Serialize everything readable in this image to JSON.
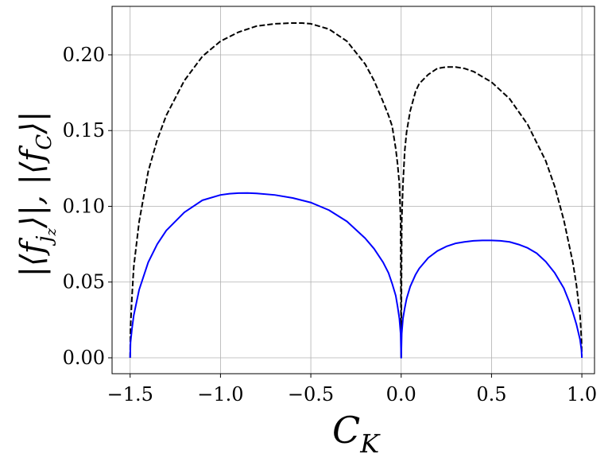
{
  "chart_data": {
    "type": "line",
    "xlabel": "C_K",
    "ylabel": "|⟨f_jz⟩|, |⟨f_C⟩|",
    "xlim": [
      -1.6,
      1.07
    ],
    "ylim": [
      -0.0105,
      0.232
    ],
    "grid": true,
    "x_ticks": [
      -1.5,
      -1.0,
      -0.5,
      0.0,
      0.5,
      1.0
    ],
    "x_tick_labels": [
      "−1.5",
      "−1.0",
      "−0.5",
      "0.0",
      "0.5",
      "1.0"
    ],
    "y_ticks": [
      0.0,
      0.05,
      0.1,
      0.15,
      0.2
    ],
    "y_tick_labels": [
      "0.00",
      "0.05",
      "0.10",
      "0.15",
      "0.20"
    ],
    "series": [
      {
        "style": "dashed",
        "color": "#000000",
        "x": [
          -1.5,
          -1.498,
          -1.49,
          -1.48,
          -1.45,
          -1.4,
          -1.35,
          -1.3,
          -1.2,
          -1.1,
          -1.0,
          -0.9,
          -0.8,
          -0.7,
          -0.6,
          -0.55,
          -0.5,
          -0.4,
          -0.3,
          -0.2,
          -0.15,
          -0.1,
          -0.07,
          -0.05,
          -0.03,
          -0.02,
          -0.01,
          -0.003,
          0.0,
          0.003,
          0.01,
          0.02,
          0.03,
          0.05,
          0.08,
          0.1,
          0.15,
          0.2,
          0.25,
          0.3,
          0.35,
          0.4,
          0.5,
          0.6,
          0.7,
          0.8,
          0.85,
          0.9,
          0.95,
          0.97,
          0.99,
          0.998,
          1.0
        ],
        "y": [
          0.0,
          0.02,
          0.04,
          0.06,
          0.09,
          0.123,
          0.144,
          0.16,
          0.183,
          0.199,
          0.209,
          0.215,
          0.219,
          0.2205,
          0.221,
          0.221,
          0.2205,
          0.217,
          0.209,
          0.194,
          0.183,
          0.169,
          0.16,
          0.153,
          0.138,
          0.128,
          0.115,
          0.09,
          0.0,
          0.09,
          0.115,
          0.137,
          0.149,
          0.163,
          0.176,
          0.181,
          0.187,
          0.191,
          0.192,
          0.192,
          0.191,
          0.189,
          0.182,
          0.171,
          0.154,
          0.13,
          0.113,
          0.091,
          0.063,
          0.048,
          0.028,
          0.012,
          0.0
        ]
      },
      {
        "style": "solid",
        "color": "#0000ff",
        "x": [
          -1.5,
          -1.498,
          -1.49,
          -1.48,
          -1.45,
          -1.4,
          -1.35,
          -1.3,
          -1.2,
          -1.1,
          -1.0,
          -0.95,
          -0.9,
          -0.85,
          -0.8,
          -0.7,
          -0.6,
          -0.5,
          -0.4,
          -0.3,
          -0.2,
          -0.15,
          -0.1,
          -0.07,
          -0.05,
          -0.03,
          -0.02,
          -0.01,
          -0.003,
          0.0,
          0.003,
          0.01,
          0.02,
          0.03,
          0.05,
          0.08,
          0.1,
          0.15,
          0.2,
          0.25,
          0.3,
          0.35,
          0.4,
          0.45,
          0.5,
          0.55,
          0.6,
          0.65,
          0.7,
          0.75,
          0.8,
          0.85,
          0.9,
          0.93,
          0.95,
          0.97,
          0.99,
          0.998,
          1.0
        ],
        "y": [
          0.0,
          0.01,
          0.019,
          0.028,
          0.045,
          0.063,
          0.075,
          0.084,
          0.096,
          0.104,
          0.1075,
          0.1083,
          0.1087,
          0.1088,
          0.1085,
          0.1075,
          0.1055,
          0.1025,
          0.0975,
          0.09,
          0.079,
          0.072,
          0.063,
          0.056,
          0.049,
          0.041,
          0.034,
          0.026,
          0.016,
          0.0,
          0.016,
          0.026,
          0.033,
          0.039,
          0.047,
          0.055,
          0.059,
          0.066,
          0.0705,
          0.0735,
          0.0755,
          0.0765,
          0.0772,
          0.0775,
          0.0775,
          0.0772,
          0.0765,
          0.0748,
          0.0725,
          0.069,
          0.0635,
          0.056,
          0.046,
          0.037,
          0.03,
          0.022,
          0.012,
          0.005,
          0.0
        ]
      }
    ]
  }
}
